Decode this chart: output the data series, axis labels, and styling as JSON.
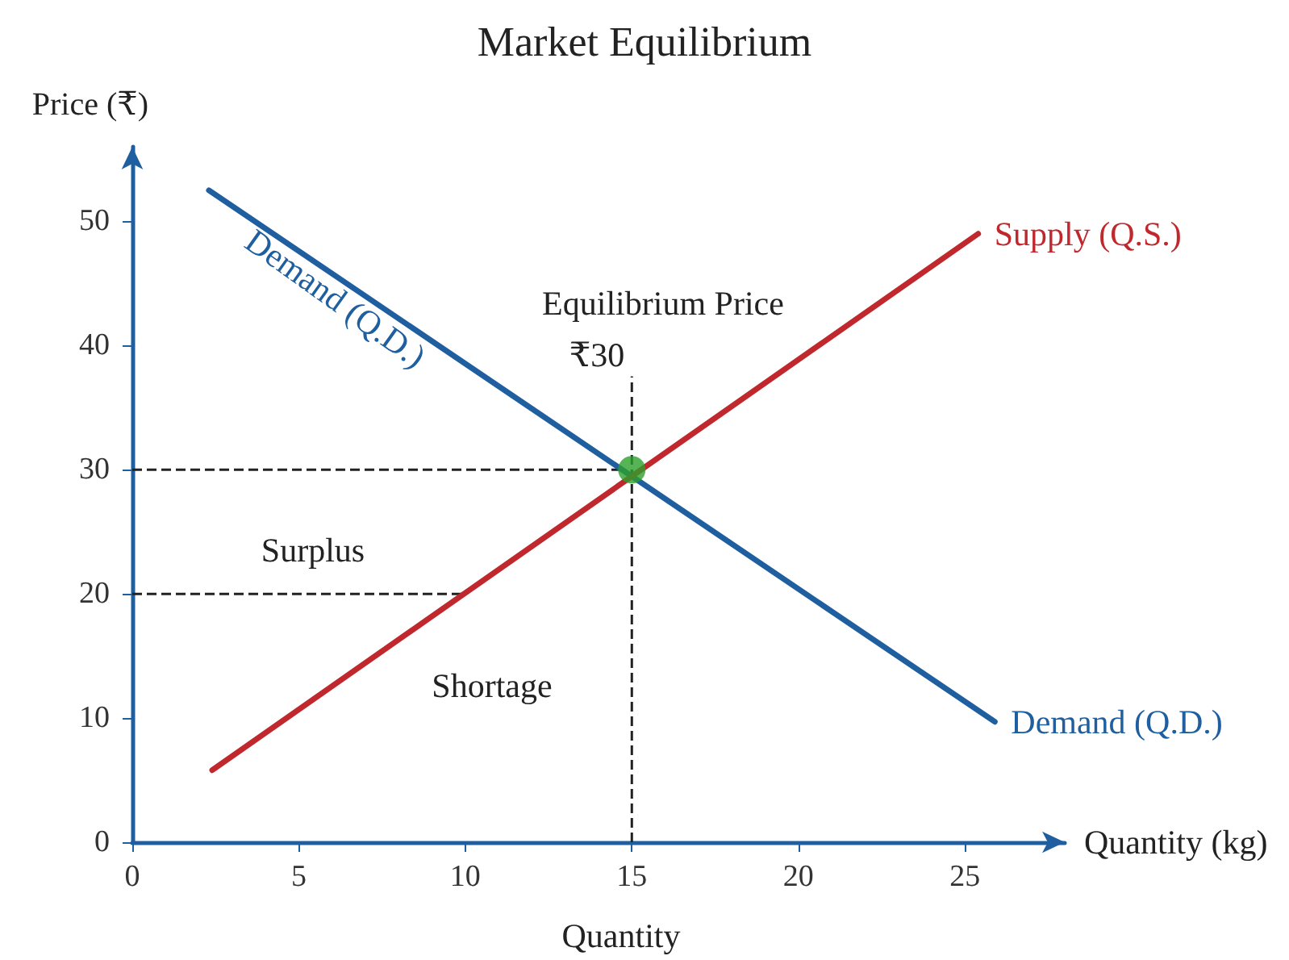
{
  "chart_data": {
    "type": "line",
    "title": "Market Equilibrium",
    "xlabel": "Quantity (kg)",
    "ylabel": "Price (₹)",
    "xlim": [
      0,
      28
    ],
    "ylim": [
      0,
      56
    ],
    "xticks": [
      0,
      5,
      10,
      15,
      20,
      25
    ],
    "yticks": [
      0,
      10,
      20,
      30,
      40,
      50
    ],
    "grid": false,
    "legend": false,
    "marker": "none",
    "line_style": "solid",
    "series": [
      {
        "name": "Demand (Q.D.)",
        "color": "#1f5fa0",
        "x": [
          2.3,
          25.9
        ],
        "values": [
          52.5,
          9.7
        ]
      },
      {
        "name": "Supply (Q.S.)",
        "color": "#c0282d",
        "x": [
          2.4,
          25.4
        ],
        "values": [
          5.8,
          49
        ]
      },
      {
        "type": "scatter",
        "color": "#2ca02c",
        "marker": "circle",
        "x": [
          15
        ],
        "values": [
          30
        ]
      }
    ],
    "ref_lines": [
      {
        "axis": "y",
        "value": 30,
        "line_style": "dashed",
        "color": "#222222"
      },
      {
        "axis": "y",
        "value": 20,
        "line_style": "dashed",
        "color": "#222222"
      },
      {
        "axis": "x",
        "value": 15,
        "line_style": "dashed",
        "color": "#222222"
      }
    ],
    "annotations": [
      "Demand (Q.D.)",
      "Equilibrium Price",
      "₹30",
      "Surplus",
      "Shortage",
      "Quantity"
    ]
  }
}
